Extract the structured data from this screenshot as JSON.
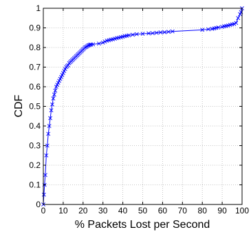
{
  "chart_data": {
    "type": "line",
    "title": "",
    "xlabel": "% Packets Lost per Second",
    "ylabel": "CDF",
    "xlim": [
      0,
      100
    ],
    "ylim": [
      0,
      1
    ],
    "grid": true,
    "legend": "none",
    "x_ticks": [
      "0",
      "10",
      "20",
      "30",
      "40",
      "50",
      "60",
      "70",
      "80",
      "90",
      "100"
    ],
    "y_ticks": [
      "0",
      "0.1",
      "0.2",
      "0.3",
      "0.4",
      "0.5",
      "0.6",
      "0.7",
      "0.8",
      "0.9",
      "1"
    ],
    "series": [
      {
        "color": "#0000ff",
        "marker": "x",
        "x": [
          0,
          0.3,
          0.6,
          1,
          1.5,
          2,
          2.5,
          3,
          3.5,
          4,
          4.5,
          5,
          5.5,
          6,
          6.5,
          7,
          7.5,
          8,
          8.5,
          9,
          9.5,
          10,
          10.5,
          11,
          11.5,
          12,
          12.5,
          13,
          13.5,
          14,
          14.5,
          15,
          15.5,
          16,
          16.5,
          17,
          17.5,
          18,
          18.5,
          19,
          19.5,
          20,
          20.5,
          21,
          21.5,
          22,
          22.5,
          23,
          23.5,
          24,
          25,
          28,
          30,
          31,
          32,
          33,
          34,
          35,
          36,
          37,
          38,
          39,
          40,
          41,
          42,
          43,
          45,
          47,
          50,
          53,
          55,
          57,
          59,
          61,
          63,
          65,
          80,
          83,
          85,
          86,
          87,
          88,
          90,
          91,
          92,
          93,
          94,
          95,
          96,
          97,
          98,
          99,
          99.5,
          100
        ],
        "y": [
          0,
          0.05,
          0.1,
          0.15,
          0.25,
          0.3,
          0.36,
          0.4,
          0.44,
          0.48,
          0.51,
          0.54,
          0.56,
          0.58,
          0.6,
          0.61,
          0.62,
          0.63,
          0.64,
          0.65,
          0.66,
          0.67,
          0.68,
          0.69,
          0.7,
          0.705,
          0.71,
          0.72,
          0.725,
          0.73,
          0.735,
          0.74,
          0.745,
          0.75,
          0.755,
          0.76,
          0.765,
          0.77,
          0.775,
          0.78,
          0.785,
          0.79,
          0.795,
          0.8,
          0.803,
          0.806,
          0.81,
          0.812,
          0.814,
          0.815,
          0.816,
          0.82,
          0.825,
          0.83,
          0.835,
          0.837,
          0.84,
          0.842,
          0.845,
          0.848,
          0.85,
          0.853,
          0.855,
          0.858,
          0.86,
          0.862,
          0.865,
          0.868,
          0.87,
          0.872,
          0.873,
          0.875,
          0.877,
          0.878,
          0.88,
          0.882,
          0.89,
          0.893,
          0.895,
          0.897,
          0.9,
          0.902,
          0.905,
          0.908,
          0.91,
          0.912,
          0.915,
          0.918,
          0.92,
          0.925,
          0.95,
          0.97,
          0.98,
          1.0
        ]
      }
    ]
  }
}
